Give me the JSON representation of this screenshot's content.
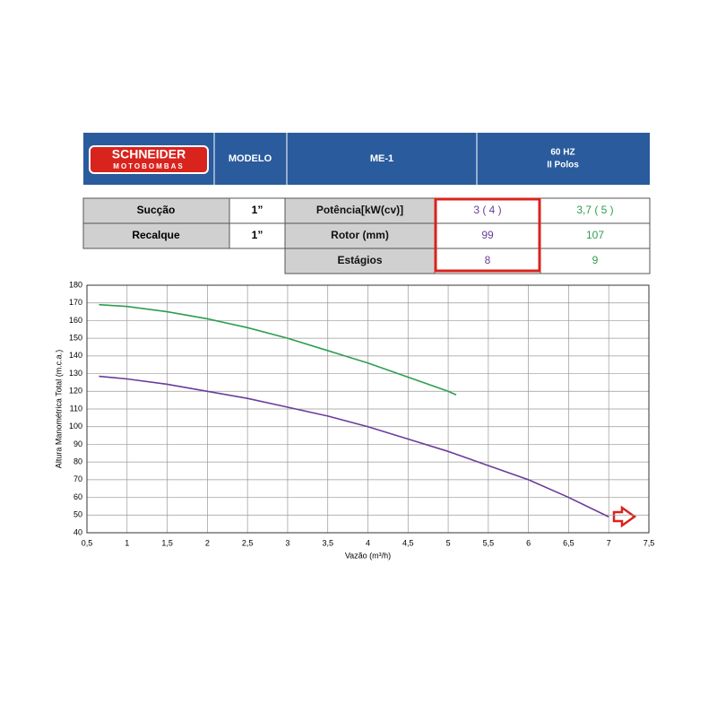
{
  "header": {
    "logo_top": "SCHNEIDER",
    "logo_bottom": "MOTOBOMBAS",
    "modelo": "MODELO",
    "model": "ME-1",
    "freq": "60 HZ",
    "poles": "II Polos"
  },
  "table": {
    "left": [
      [
        "Sucção",
        "1”"
      ],
      [
        "Recalque",
        "1”"
      ]
    ],
    "right": [
      [
        "Potência[kW(cv)]",
        "3 ( 4 )",
        "3,7 ( 5 )"
      ],
      [
        "Rotor (mm)",
        "99",
        "107"
      ],
      [
        "Estágios",
        "8",
        "9"
      ]
    ]
  },
  "chart_data": {
    "type": "line",
    "x_label": "Vazão (m³/h)",
    "y_label": "Altura Manométrica Total (m.c.a.)",
    "xlim": [
      0.5,
      7.5
    ],
    "ylim": [
      40,
      180
    ],
    "grid": true,
    "xticks": [
      {
        "value": 0.5,
        "label": "0,5"
      },
      1,
      {
        "value": 1.5,
        "label": "1,5"
      },
      2,
      {
        "value": 2.5,
        "label": "2,5"
      },
      3,
      {
        "value": 3.5,
        "label": "3,5"
      },
      4,
      {
        "value": 4.5,
        "label": "4,5"
      },
      5,
      {
        "value": 5.5,
        "label": "5,5"
      },
      6,
      {
        "value": 6.5,
        "label": "6,5"
      },
      7,
      {
        "value": 7.5,
        "label": "7,5"
      }
    ],
    "yticks": [
      40,
      50,
      60,
      70,
      80,
      90,
      100,
      110,
      120,
      130,
      140,
      150,
      160,
      170,
      180
    ],
    "series": [
      {
        "color": "#6a3d9a",
        "x": [
          0.65,
          1,
          1.5,
          2,
          2.5,
          3,
          3.5,
          4,
          4.5,
          5,
          5.5,
          6,
          6.5,
          7
        ],
        "values": [
          128.5,
          127,
          124,
          120,
          116,
          111,
          106,
          100,
          93,
          86,
          78,
          70,
          60,
          49
        ]
      },
      {
        "color": "#2e9e4f",
        "x": [
          0.65,
          1,
          1.5,
          2,
          2.5,
          3,
          3.5,
          4,
          4.5,
          5,
          5.1
        ],
        "values": [
          169,
          168,
          165,
          161,
          156,
          150,
          143,
          136,
          128,
          120,
          118
        ]
      }
    ]
  }
}
